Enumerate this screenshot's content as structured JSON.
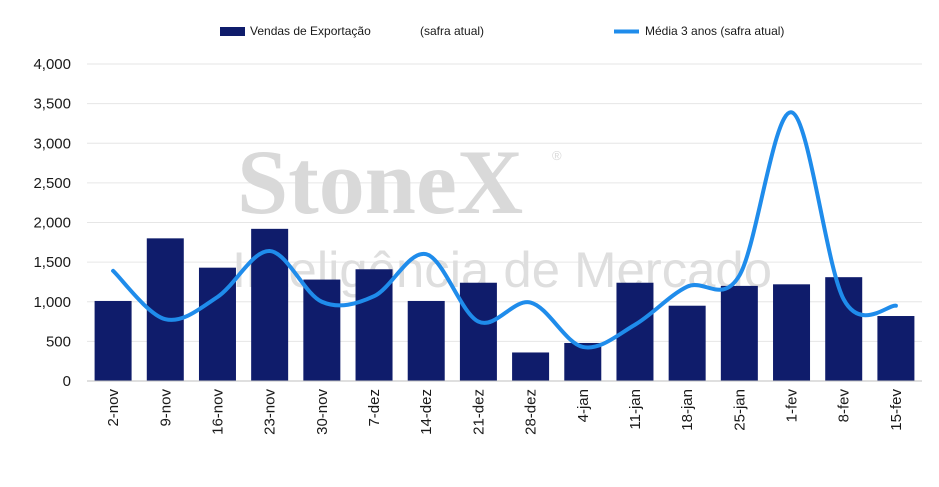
{
  "chart_data": {
    "type": "bar",
    "categories": [
      "2-nov",
      "9-nov",
      "16-nov",
      "23-nov",
      "30-nov",
      "7-dez",
      "14-dez",
      "21-dez",
      "28-dez",
      "4-jan",
      "11-jan",
      "18-jan",
      "25-jan",
      "1-fev",
      "8-fev",
      "15-fev"
    ],
    "series": [
      {
        "name": "Vendas de Exportação",
        "type": "bar",
        "color": "#0f1c6b",
        "values": [
          1010,
          1800,
          1430,
          1920,
          1280,
          1410,
          1010,
          1240,
          360,
          480,
          1240,
          950,
          1200,
          1220,
          1310,
          820
        ]
      },
      {
        "name": "Média 3 anos (safra atual)",
        "type": "line",
        "color": "#1f8ceb",
        "values": [
          1390,
          780,
          1060,
          1640,
          1000,
          1070,
          1600,
          750,
          990,
          430,
          710,
          1190,
          1330,
          3390,
          1030,
          950
        ]
      }
    ],
    "legend_extra": "(safra atual)",
    "ylim": [
      0,
      4000
    ],
    "yticks": [
      0,
      500,
      1000,
      1500,
      2000,
      2500,
      3000,
      3500,
      4000
    ],
    "ytick_labels": [
      "0",
      "500",
      "1,000",
      "1,500",
      "2,000",
      "2,500",
      "3,000",
      "3,500",
      "4,000"
    ],
    "grid": true,
    "legend_position": "top",
    "watermark": {
      "brand": "StoneX",
      "registered": "®",
      "tagline": "Inteligência de Mercado"
    }
  }
}
